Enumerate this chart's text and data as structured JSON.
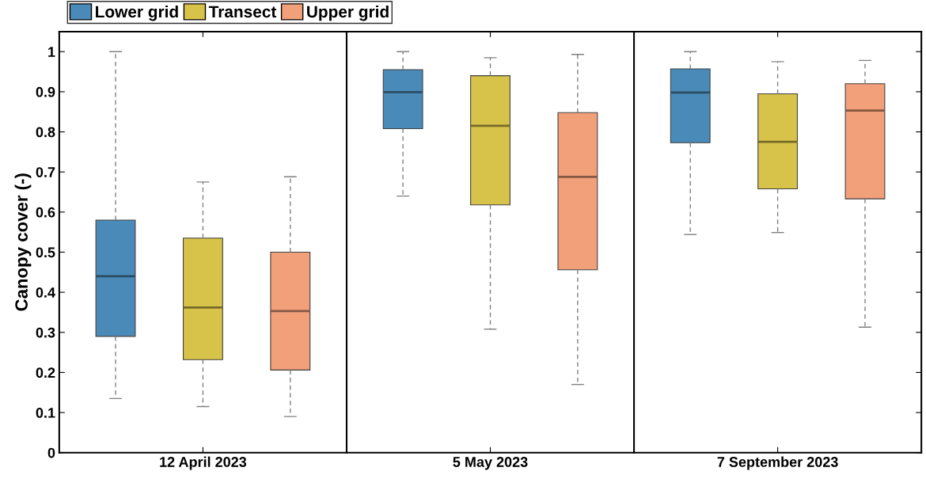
{
  "chart_data": {
    "type": "box",
    "ylabel": "Canopy cover (-)",
    "categories": [
      "12 April 2023",
      "5 May 2023",
      "7 September 2023"
    ],
    "ylim": [
      0,
      1.05
    ],
    "yticks": [
      0,
      0.1,
      0.2,
      0.3,
      0.4,
      0.5,
      0.6,
      0.7,
      0.8,
      0.9,
      1
    ],
    "legend": "top left",
    "grid": false,
    "series": [
      {
        "name": "Lower grid",
        "color": "#4a8ab8",
        "boxes": [
          {
            "low": 0.135,
            "q1": 0.29,
            "median": 0.44,
            "q3": 0.58,
            "high": 1.0
          },
          {
            "low": 0.64,
            "q1": 0.808,
            "median": 0.899,
            "q3": 0.955,
            "high": 1.0
          },
          {
            "low": 0.544,
            "q1": 0.773,
            "median": 0.898,
            "q3": 0.957,
            "high": 1.0
          }
        ]
      },
      {
        "name": "Transect",
        "color": "#d8c34a",
        "boxes": [
          {
            "low": 0.115,
            "q1": 0.232,
            "median": 0.362,
            "q3": 0.535,
            "high": 0.675
          },
          {
            "low": 0.308,
            "q1": 0.618,
            "median": 0.815,
            "q3": 0.94,
            "high": 0.985
          },
          {
            "low": 0.549,
            "q1": 0.658,
            "median": 0.775,
            "q3": 0.895,
            "high": 0.975
          }
        ]
      },
      {
        "name": "Upper grid",
        "color": "#f2a07a",
        "boxes": [
          {
            "low": 0.09,
            "q1": 0.206,
            "median": 0.353,
            "q3": 0.5,
            "high": 0.688
          },
          {
            "low": 0.17,
            "q1": 0.456,
            "median": 0.688,
            "q3": 0.848,
            "high": 0.993
          },
          {
            "low": 0.313,
            "q1": 0.633,
            "median": 0.853,
            "q3": 0.92,
            "high": 0.978
          }
        ]
      }
    ]
  }
}
